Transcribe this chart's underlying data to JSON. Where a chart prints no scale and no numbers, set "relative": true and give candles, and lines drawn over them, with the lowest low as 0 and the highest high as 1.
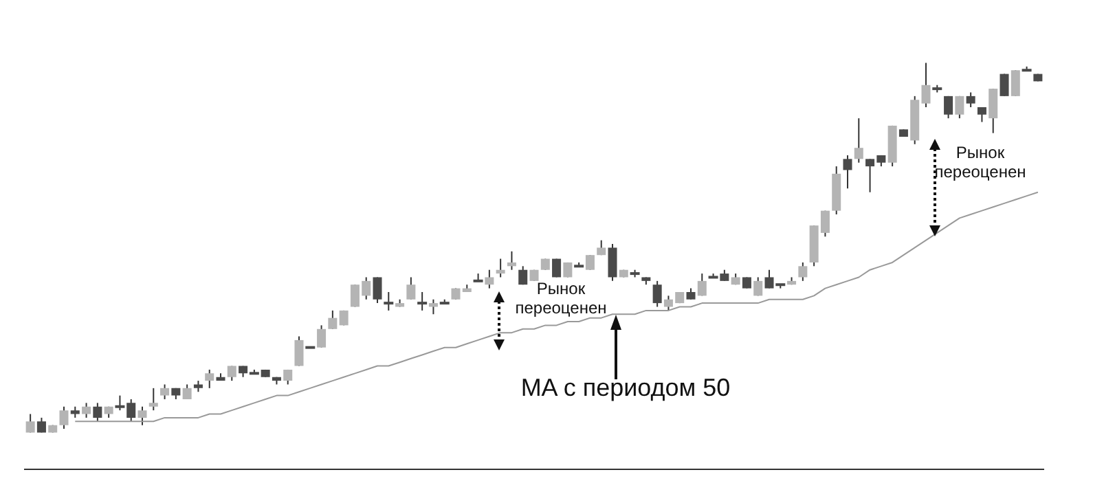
{
  "chart_data": {
    "type": "candlestick",
    "relative": true,
    "legend": false,
    "grid": false,
    "categories": [
      null,
      null,
      null,
      null,
      null,
      null,
      null,
      null,
      null,
      null,
      null,
      null,
      null,
      null,
      null,
      null,
      null,
      null,
      null,
      null,
      null,
      null,
      null,
      null,
      null,
      null,
      null,
      null,
      null,
      null,
      null,
      null,
      null,
      null,
      null,
      null,
      null,
      null,
      null,
      null,
      null,
      null,
      null,
      null,
      null,
      null,
      null,
      null,
      null,
      null,
      null,
      null,
      null,
      null,
      null,
      null,
      null,
      null,
      null,
      null,
      null,
      null,
      null,
      null,
      null,
      null,
      null,
      null,
      null,
      null,
      null,
      null,
      null,
      null,
      null,
      null,
      null,
      null,
      null,
      null,
      null,
      null,
      null,
      null,
      null,
      null,
      null,
      null,
      null,
      null,
      null
    ],
    "ohlc": [
      [
        0.0,
        0.05,
        0.0,
        0.03
      ],
      [
        0.03,
        0.04,
        0,
        0
      ],
      [
        0.0,
        0.02,
        0.0,
        0.02
      ],
      [
        0.02,
        0.07,
        0.01,
        0.06
      ],
      [
        0.06,
        0.07,
        0.04,
        0.05
      ],
      [
        0.05,
        0.08,
        0.04,
        0.07
      ],
      [
        0.07,
        0.08,
        0.03,
        0.04
      ],
      [
        0.05,
        0.07,
        0.04,
        0.07
      ],
      [
        0.07,
        0.1,
        0.06,
        0.07
      ],
      [
        0.08,
        0.09,
        0.03,
        0.04
      ],
      [
        0.04,
        0.07,
        0.02,
        0.06
      ],
      [
        0.07,
        0.12,
        0.06,
        0.08
      ],
      [
        0.1,
        0.13,
        0.09,
        0.12
      ],
      [
        0.12,
        0.12,
        0.09,
        0.1
      ],
      [
        0.09,
        0.13,
        0.09,
        0.12
      ],
      [
        0.13,
        0.14,
        0.11,
        0.12
      ],
      [
        0.14,
        0.17,
        0.12,
        0.16
      ],
      [
        0.15,
        0.16,
        0.14,
        0.14
      ],
      [
        0.15,
        0.18,
        0.14,
        0.18
      ],
      [
        0.18,
        0.18,
        0.15,
        0.16
      ],
      [
        0.16,
        0.17,
        0.16,
        0.16
      ],
      [
        0.17,
        0.17,
        0.15,
        0.15
      ],
      [
        0.15,
        0.15,
        0.13,
        0.14
      ],
      [
        0.14,
        0.17,
        0.13,
        0.17
      ],
      [
        0.18,
        0.26,
        0.18,
        0.25
      ],
      [
        0.23,
        0.23,
        0.23,
        0.23
      ],
      [
        0.23,
        0.29,
        0.23,
        0.28
      ],
      [
        0.28,
        0.33,
        0.28,
        0.31
      ],
      [
        0.29,
        0.33,
        0.29,
        0.33
      ],
      [
        0.34,
        0.4,
        0.34,
        0.4
      ],
      [
        0.37,
        0.42,
        0.36,
        0.41
      ],
      [
        0.42,
        0.42,
        0.35,
        0.36
      ],
      [
        0.35,
        0.38,
        0.33,
        0.35
      ],
      [
        0.34,
        0.36,
        0.34,
        0.35
      ],
      [
        0.36,
        0.42,
        0.36,
        0.4
      ],
      [
        0.35,
        0.38,
        0.33,
        0.35
      ],
      [
        0.34,
        0.36,
        0.32,
        0.35
      ],
      [
        0.35,
        0.36,
        0.35,
        0.35
      ],
      [
        0.36,
        0.39,
        0.36,
        0.39
      ],
      [
        0.38,
        0.4,
        0.38,
        0.39
      ],
      [
        0.41,
        0.43,
        0.41,
        0.41
      ],
      [
        0.4,
        0.44,
        0.39,
        0.42
      ],
      [
        0.43,
        0.47,
        0.42,
        0.44
      ],
      [
        0.45,
        0.49,
        0.44,
        0.46
      ],
      [
        0.44,
        0.45,
        0.4,
        0.4
      ],
      [
        0.41,
        0.44,
        0.41,
        0.44
      ],
      [
        0.44,
        0.47,
        0.44,
        0.47
      ],
      [
        0.47,
        0.47,
        0.42,
        0.42
      ],
      [
        0.42,
        0.46,
        0.42,
        0.46
      ],
      [
        0.45,
        0.46,
        0.45,
        0.45
      ],
      [
        0.44,
        0.48,
        0.44,
        0.48
      ],
      [
        0.48,
        0.52,
        0.48,
        0.5
      ],
      [
        0.5,
        0.51,
        0.41,
        0.42
      ],
      [
        0.42,
        0.44,
        0.42,
        0.44
      ],
      [
        0.43,
        0.44,
        0.42,
        0.43
      ],
      [
        0.42,
        0.42,
        0.4,
        0.41
      ],
      [
        0.4,
        0.41,
        0.34,
        0.35
      ],
      [
        0.34,
        0.37,
        0.33,
        0.36
      ],
      [
        0.35,
        0.38,
        0.35,
        0.38
      ],
      [
        0.38,
        0.39,
        0.36,
        0.36
      ],
      [
        0.37,
        0.43,
        0.37,
        0.41
      ],
      [
        0.42,
        0.43,
        0.42,
        0.42
      ],
      [
        0.43,
        0.44,
        0.41,
        0.41
      ],
      [
        0.4,
        0.43,
        0.4,
        0.42
      ],
      [
        0.42,
        0.42,
        0.39,
        0.39
      ],
      [
        0.37,
        0.42,
        0.37,
        0.41
      ],
      [
        0.42,
        0.44,
        0.39,
        0.39
      ],
      [
        0.4,
        0.4,
        0.39,
        0.4
      ],
      [
        0.4,
        0.42,
        0.4,
        0.41
      ],
      [
        0.42,
        0.46,
        0.41,
        0.45
      ],
      [
        0.46,
        0.56,
        0.45,
        0.56
      ],
      [
        0.54,
        0.6,
        0.53,
        0.6
      ],
      [
        0.6,
        0.72,
        0.59,
        0.7
      ],
      [
        0.74,
        0.75,
        0.66,
        0.71
      ],
      [
        0.74,
        0.85,
        0.73,
        0.77
      ],
      [
        0.74,
        0.74,
        0.65,
        0.72
      ],
      [
        0.75,
        0.75,
        0.72,
        0.73
      ],
      [
        0.73,
        0.83,
        0.72,
        0.83
      ],
      [
        0.82,
        0.82,
        0.8,
        0.8
      ],
      [
        0.79,
        0.91,
        0.78,
        0.9
      ],
      [
        0.89,
        1.0,
        0.88,
        0.94
      ],
      [
        0.93,
        0.94,
        0.92,
        0.93
      ],
      [
        0.91,
        0.91,
        0.85,
        0.86
      ],
      [
        0.86,
        0.91,
        0.85,
        0.91
      ],
      [
        0.91,
        0.92,
        0.88,
        0.89
      ],
      [
        0.88,
        0.88,
        0.84,
        0.86
      ],
      [
        0.85,
        0.93,
        0.81,
        0.93
      ],
      [
        0.97,
        0.97,
        0.91,
        0.91
      ],
      [
        0.91,
        0.98,
        0.91,
        0.98
      ],
      [
        0.98,
        0.99,
        0.98,
        0.98
      ],
      [
        0.97,
        0.97,
        0.95,
        0.95
      ]
    ],
    "colors": [
      "#b4b4b4",
      "#4a4a4a",
      "#b4b4b4",
      "#b4b4b4",
      "#4a4a4a",
      "#b4b4b4",
      "#4a4a4a",
      "#b4b4b4",
      "#4a4a4a",
      "#4a4a4a",
      "#b4b4b4",
      "#b4b4b4",
      "#b4b4b4",
      "#4a4a4a",
      "#b4b4b4",
      "#4a4a4a",
      "#b4b4b4",
      "#4a4a4a",
      "#b4b4b4",
      "#4a4a4a",
      "#4a4a4a",
      "#4a4a4a",
      "#4a4a4a",
      "#b4b4b4",
      "#b4b4b4",
      "#4a4a4a",
      "#b4b4b4",
      "#b4b4b4",
      "#b4b4b4",
      "#b4b4b4",
      "#b4b4b4",
      "#4a4a4a",
      "#4a4a4a",
      "#b4b4b4",
      "#b4b4b4",
      "#4a4a4a",
      "#b4b4b4",
      "#4a4a4a",
      "#b4b4b4",
      "#b4b4b4",
      "#4a4a4a",
      "#b4b4b4",
      "#b4b4b4",
      "#b4b4b4",
      "#4a4a4a",
      "#b4b4b4",
      "#b4b4b4",
      "#4a4a4a",
      "#b4b4b4",
      "#4a4a4a",
      "#b4b4b4",
      "#b4b4b4",
      "#4a4a4a",
      "#b4b4b4",
      "#4a4a4a",
      "#4a4a4a",
      "#4a4a4a",
      "#b4b4b4",
      "#b4b4b4",
      "#4a4a4a",
      "#b4b4b4",
      "#4a4a4a",
      "#4a4a4a",
      "#b4b4b4",
      "#4a4a4a",
      "#b4b4b4",
      "#4a4a4a",
      "#4a4a4a",
      "#b4b4b4",
      "#b4b4b4",
      "#b4b4b4",
      "#b4b4b4",
      "#b4b4b4",
      "#4a4a4a",
      "#b4b4b4",
      "#4a4a4a",
      "#4a4a4a",
      "#b4b4b4",
      "#4a4a4a",
      "#b4b4b4",
      "#b4b4b4",
      "#4a4a4a",
      "#4a4a4a",
      "#b4b4b4",
      "#4a4a4a",
      "#4a4a4a",
      "#b4b4b4",
      "#4a4a4a",
      "#b4b4b4",
      "#4a4a4a",
      "#4a4a4a"
    ],
    "series": [
      {
        "type": "line",
        "color": "#999999",
        "values": [
          null,
          null,
          null,
          null,
          0.03,
          0.03,
          0.03,
          0.03,
          0.03,
          0.03,
          0.03,
          0.03,
          0.04,
          0.04,
          0.04,
          0.04,
          0.05,
          0.05,
          0.06,
          0.07,
          0.08,
          0.09,
          0.1,
          0.1,
          0.11,
          0.12,
          0.13,
          0.14,
          0.15,
          0.16,
          0.17,
          0.18,
          0.18,
          0.19,
          0.2,
          0.21,
          0.22,
          0.23,
          0.23,
          0.24,
          0.25,
          0.26,
          0.27,
          0.27,
          0.28,
          0.28,
          0.29,
          0.29,
          0.3,
          0.3,
          0.31,
          0.31,
          0.32,
          0.32,
          0.32,
          0.33,
          0.33,
          0.33,
          0.34,
          0.34,
          0.35,
          0.35,
          0.35,
          0.35,
          0.35,
          0.35,
          0.36,
          0.36,
          0.36,
          0.36,
          0.37,
          0.39,
          0.4,
          0.41,
          0.42,
          0.44,
          0.45,
          0.46,
          0.48,
          0.5,
          0.52,
          0.54,
          0.56,
          0.58,
          0.59,
          0.6,
          0.61,
          0.62,
          0.63,
          0.64,
          0.65
        ]
      }
    ],
    "marker": "none",
    "line_style": "solid",
    "annotations": [
      "Рынок переоценен",
      "Рынок переоценен",
      "MA с периодом 50"
    ]
  }
}
